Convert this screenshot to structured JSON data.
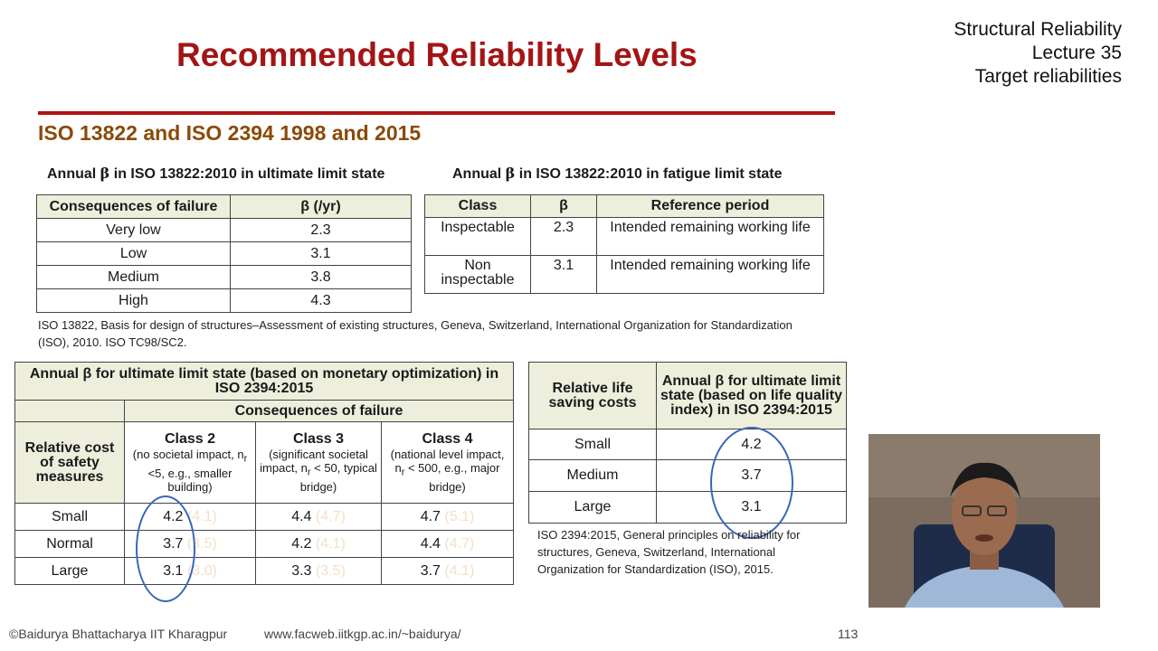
{
  "slide": {
    "title": "Recommended Reliability Levels",
    "corner": {
      "line1": "Structural Reliability",
      "line2": "Lecture 35",
      "line3": "Target reliabilities"
    },
    "subtitle": "ISO 13822 and ISO 2394 1998 and 2015"
  },
  "table1": {
    "caption_pre": "Annual",
    "caption_symbol": "β",
    "caption_post": "in ISO 13822:2010 in ultimate limit state",
    "headers": [
      "Consequences of failure",
      "β  (/yr)"
    ],
    "rows": [
      [
        "Very low",
        "2.3"
      ],
      [
        "Low",
        "3.1"
      ],
      [
        "Medium",
        "3.8"
      ],
      [
        "High",
        "4.3"
      ]
    ]
  },
  "table2": {
    "caption_pre": "Annual",
    "caption_symbol": "β",
    "caption_post": "in ISO 13822:2010  in fatigue limit state",
    "headers": [
      "Class",
      "β",
      "Reference period"
    ],
    "rows": [
      [
        "Inspectable",
        "2.3",
        "Intended remaining working life"
      ],
      [
        "Non inspectable",
        "3.1",
        "Intended remaining working life"
      ]
    ]
  },
  "ref1": "ISO 13822, Basis for design of structures–Assessment  of existing structures, Geneva, Switzerland, International Organization for Standardization (ISO), 2010. ISO TC98/SC2.",
  "table3": {
    "header": "Annual  β for ultimate limit state (based on monetary optimization) in ISO 2394:2015",
    "consequences": "Consequences of failure",
    "row_header": "Relative cost of safety measures",
    "classes": [
      {
        "name": "Class 2",
        "desc_pre": "(no societal impact, n",
        "desc_sub": "r",
        "desc_post": " <5, e.g., smaller building)"
      },
      {
        "name": "Class 3",
        "desc_pre": "(significant societal impact, n",
        "desc_sub": "r",
        "desc_post": " < 50, typical bridge)"
      },
      {
        "name": "Class 4",
        "desc_pre": "(national level impact, n",
        "desc_sub": "r",
        "desc_post": " < 500, e.g., major bridge)"
      }
    ],
    "rows": [
      {
        "label": "Small",
        "values": [
          "4.2",
          "4.4",
          "4.7"
        ],
        "faded": [
          "(4.1)",
          "(4.7)",
          "(5.1)"
        ]
      },
      {
        "label": "Normal",
        "values": [
          "3.7",
          "4.2",
          "4.4"
        ],
        "faded": [
          "(3.5)",
          "(4.1)",
          "(4.7)"
        ]
      },
      {
        "label": "Large",
        "values": [
          "3.1",
          "3.3",
          "3.7"
        ],
        "faded": [
          "(3.0)",
          "(3.5)",
          "(4.1)"
        ]
      }
    ]
  },
  "table4": {
    "headers": [
      "Relative life saving costs",
      "Annual  β for ultimate limit state (based on life quality index) in ISO 2394:2015"
    ],
    "rows": [
      [
        "Small",
        "4.2"
      ],
      [
        "Medium",
        "3.7"
      ],
      [
        "Large",
        "3.1"
      ]
    ]
  },
  "ref2": "ISO 2394:2015, General principles on reliability for structures, Geneva, Switzerland, International Organization for Standardization (ISO), 2015.",
  "footer": {
    "copyright": "©Baidurya Bhattacharya   IIT Kharagpur",
    "url": "www.facweb.iitkgp.ac.in/~baidurya/",
    "page": "113"
  },
  "colors": {
    "title": "#a31515",
    "subtitle": "#8a4a08",
    "rule": "#b01212",
    "header_fill": "#eeeedd",
    "oval": "#3a66b8"
  }
}
